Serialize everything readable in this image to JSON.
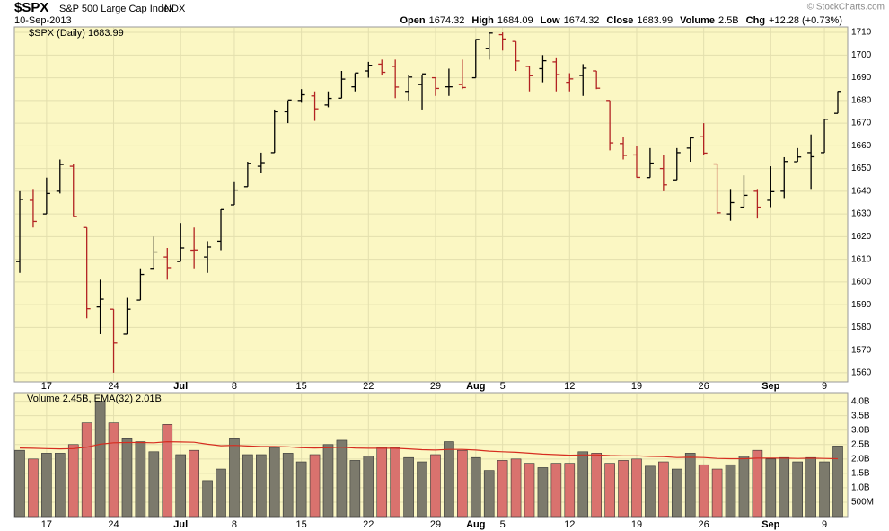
{
  "header": {
    "symbol": "$SPX",
    "name": "S&P 500 Large Cap Index",
    "exchange": "INDX",
    "date": "10-Sep-2013",
    "copyright": "© StockCharts.com",
    "quote": [
      {
        "label": "Open",
        "value": "1674.32"
      },
      {
        "label": "High",
        "value": "1684.09"
      },
      {
        "label": "Low",
        "value": "1674.32"
      },
      {
        "label": "Close",
        "value": "1683.99"
      },
      {
        "label": "Volume",
        "value": "2.5B"
      },
      {
        "label": "Chg",
        "value": "+12.28 (+0.73%)"
      }
    ]
  },
  "chart_data": [
    {
      "type": "ohlc",
      "legend": "$SPX (Daily) 1683.99",
      "categories": [
        null,
        null,
        "17",
        null,
        null,
        null,
        null,
        "24",
        null,
        null,
        null,
        null,
        "Jul",
        null,
        null,
        null,
        "8",
        null,
        null,
        null,
        null,
        "15",
        null,
        null,
        null,
        null,
        "22",
        null,
        null,
        null,
        null,
        "29",
        null,
        null,
        "Aug",
        null,
        "5",
        null,
        null,
        null,
        null,
        "12",
        null,
        null,
        null,
        null,
        "19",
        null,
        null,
        null,
        null,
        "26",
        null,
        null,
        null,
        null,
        "Sep",
        null,
        null,
        null,
        "9",
        null
      ],
      "open": [
        1609,
        1636,
        1630,
        1640,
        1651,
        1624,
        1589,
        1588,
        1577,
        1592,
        1606,
        1611,
        1609,
        1614,
        1611,
        1618,
        1634,
        1642,
        1651,
        1657,
        1675,
        1680,
        1682,
        1678,
        1681,
        1686,
        1693,
        1696,
        1695,
        1684,
        1687,
        1690,
        1686,
        1687,
        1690,
        1703,
        1709,
        1706,
        1695,
        1694,
        1697,
        1688,
        1691,
        1693,
        1680,
        1661,
        1656,
        1646,
        1650,
        1645,
        1659,
        1664,
        1652,
        1630,
        1633,
        1640,
        1636,
        1640,
        1653,
        1657,
        1657,
        1674.32
      ],
      "high": [
        1640,
        1641,
        1646,
        1654,
        1652,
        1624,
        1601,
        1588,
        1593,
        1606,
        1620,
        1615,
        1626,
        1624,
        1618,
        1632,
        1644,
        1653,
        1657,
        1676,
        1680,
        1685,
        1684,
        1684,
        1693,
        1692,
        1697,
        1698,
        1698,
        1691,
        1691,
        1690,
        1694,
        1698,
        1707,
        1710,
        1710,
        1706,
        1695,
        1700,
        1699,
        1692,
        1696,
        1693,
        1680,
        1664,
        1660,
        1659,
        1656,
        1659,
        1664,
        1670,
        1652,
        1641,
        1647,
        1641,
        1651,
        1655,
        1659,
        1665,
        1672,
        1684.09
      ],
      "low": [
        1604,
        1624,
        1630,
        1639,
        1629,
        1584,
        1577,
        1560,
        1577,
        1592,
        1606,
        1601,
        1609,
        1606,
        1604,
        1614,
        1634,
        1642,
        1648,
        1657,
        1670,
        1679,
        1671,
        1677,
        1681,
        1684,
        1690,
        1691,
        1681,
        1680,
        1676,
        1682,
        1682,
        1685,
        1690,
        1698,
        1702,
        1693,
        1684,
        1688,
        1684,
        1684,
        1682,
        1685,
        1658,
        1654,
        1646,
        1646,
        1640,
        1645,
        1653,
        1656,
        1630,
        1627,
        1633,
        1628,
        1633,
        1637,
        1653,
        1641,
        1657,
        1674.32
      ],
      "close": [
        1636.4,
        1626.7,
        1639.0,
        1651.8,
        1628.9,
        1588.2,
        1592.4,
        1573.1,
        1588.0,
        1603.3,
        1613.2,
        1606.3,
        1615.0,
        1614.1,
        1615.4,
        1631.9,
        1640.5,
        1652.3,
        1652.6,
        1675.0,
        1680.2,
        1682.5,
        1676.3,
        1680.9,
        1689.4,
        1692.1,
        1695.5,
        1692.4,
        1685.9,
        1690.3,
        1691.7,
        1685.3,
        1686.0,
        1685.7,
        1706.9,
        1709.7,
        1707.1,
        1697.4,
        1690.9,
        1697.5,
        1691.4,
        1689.5,
        1694.2,
        1685.4,
        1661.3,
        1655.8,
        1646.1,
        1652.4,
        1642.8,
        1657.0,
        1663.5,
        1656.8,
        1630.5,
        1635.0,
        1638.2,
        1633.0,
        1639.8,
        1653.1,
        1655.1,
        1655.2,
        1671.7,
        1683.99
      ],
      "ylim": [
        1556,
        1712.4
      ],
      "yticks": [
        1560,
        1570,
        1580,
        1590,
        1600,
        1610,
        1620,
        1630,
        1640,
        1650,
        1660,
        1670,
        1680,
        1690,
        1700,
        1710
      ],
      "up_color": "#000000",
      "down_color": "#b22222",
      "grid": true
    },
    {
      "type": "bar",
      "legend": "Volume 2.45B, EMA(32) 2.01B",
      "categories": [
        null,
        null,
        "17",
        null,
        null,
        null,
        null,
        "24",
        null,
        null,
        null,
        null,
        "Jul",
        null,
        null,
        null,
        "8",
        null,
        null,
        null,
        null,
        "15",
        null,
        null,
        null,
        null,
        "22",
        null,
        null,
        null,
        null,
        "29",
        null,
        null,
        "Aug",
        null,
        "5",
        null,
        null,
        null,
        null,
        "12",
        null,
        null,
        null,
        null,
        "19",
        null,
        null,
        null,
        null,
        "26",
        null,
        null,
        null,
        null,
        "Sep",
        null,
        null,
        null,
        "9",
        null
      ],
      "values": [
        2.3,
        2.0,
        2.2,
        2.2,
        2.5,
        3.25,
        4.0,
        3.25,
        2.7,
        2.6,
        2.25,
        3.2,
        2.15,
        2.3,
        1.25,
        1.65,
        2.7,
        2.15,
        2.15,
        2.4,
        2.2,
        1.9,
        2.15,
        2.5,
        2.65,
        1.95,
        2.1,
        2.4,
        2.4,
        2.05,
        1.9,
        2.15,
        2.6,
        2.3,
        2.05,
        1.6,
        1.95,
        2.0,
        1.85,
        1.7,
        1.85,
        1.85,
        2.25,
        2.2,
        1.85,
        1.95,
        2.0,
        1.75,
        1.9,
        1.65,
        2.2,
        1.8,
        1.65,
        1.8,
        2.1,
        2.3,
        2.0,
        2.05,
        1.9,
        2.05,
        1.9,
        2.45
      ],
      "ema": [
        2.38,
        2.37,
        2.36,
        2.35,
        2.36,
        2.41,
        2.51,
        2.56,
        2.57,
        2.57,
        2.56,
        2.6,
        2.59,
        2.58,
        2.51,
        2.46,
        2.47,
        2.45,
        2.43,
        2.43,
        2.42,
        2.39,
        2.38,
        2.39,
        2.41,
        2.38,
        2.37,
        2.37,
        2.37,
        2.35,
        2.32,
        2.31,
        2.33,
        2.33,
        2.31,
        2.27,
        2.25,
        2.23,
        2.2,
        2.17,
        2.15,
        2.13,
        2.14,
        2.14,
        2.12,
        2.11,
        2.11,
        2.09,
        2.08,
        2.05,
        2.06,
        2.05,
        2.02,
        2.01,
        2.01,
        2.03,
        2.03,
        2.03,
        2.02,
        2.03,
        2.02,
        2.01
      ],
      "ema_color": "#d62d20",
      "up_color": "#7c7a6c",
      "down_color": "#d9726e",
      "ylim": [
        0,
        4.3
      ],
      "yticks": [
        {
          "value": 0.5,
          "label": "500M"
        },
        {
          "value": 1.0,
          "label": "1.0B"
        },
        {
          "value": 1.5,
          "label": "1.5B"
        },
        {
          "value": 2.0,
          "label": "2.0B"
        },
        {
          "value": 2.5,
          "label": "2.5B"
        },
        {
          "value": 3.0,
          "label": "3.0B"
        },
        {
          "value": 3.5,
          "label": "3.5B"
        },
        {
          "value": 4.0,
          "label": "4.0B"
        }
      ],
      "grid": true
    }
  ]
}
